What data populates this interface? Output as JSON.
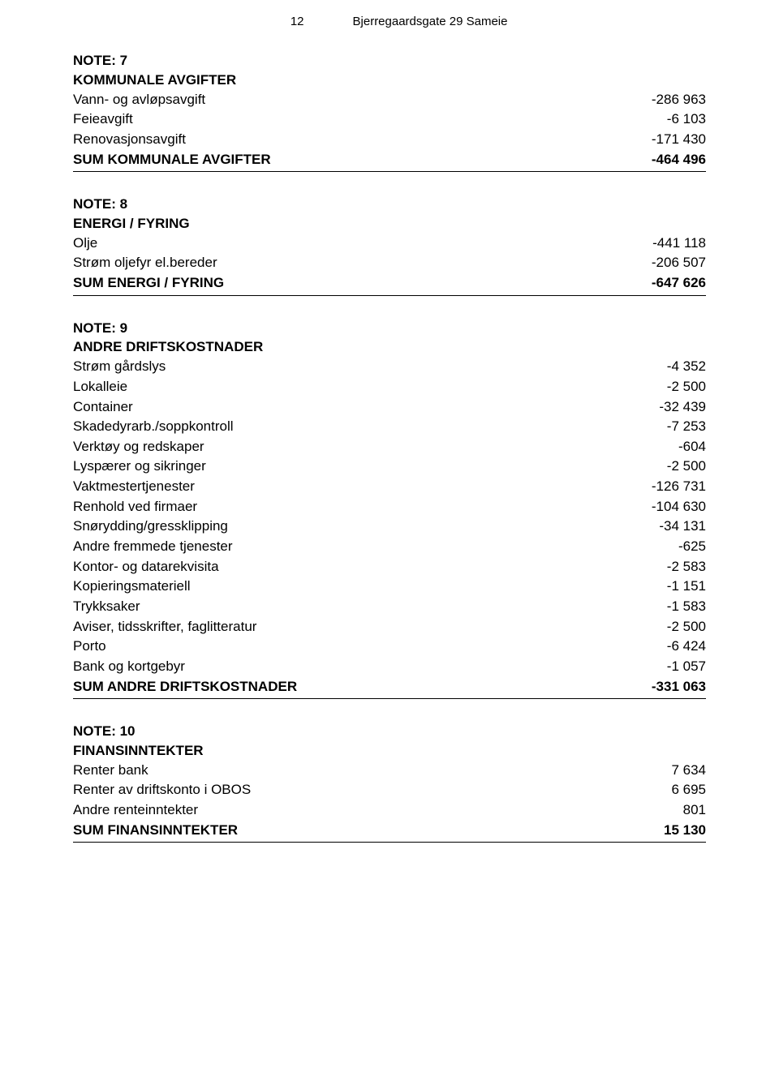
{
  "header": {
    "page_number": "12",
    "doc_title": "Bjerregaardsgate 29 Sameie"
  },
  "sections": [
    {
      "note": "NOTE: 7",
      "title": "KOMMUNALE AVGIFTER",
      "rows": [
        {
          "label": "Vann- og avløpsavgift",
          "value": "-286 963"
        },
        {
          "label": "Feieavgift",
          "value": "-6 103"
        },
        {
          "label": "Renovasjonsavgift",
          "value": "-171 430"
        }
      ],
      "sumrow": {
        "label": "SUM KOMMUNALE AVGIFTER",
        "value": "-464 496"
      }
    },
    {
      "note": "NOTE: 8",
      "title": "ENERGI / FYRING",
      "rows": [
        {
          "label": "Olje",
          "value": "-441 118"
        },
        {
          "label": "Strøm oljefyr el.bereder",
          "value": "-206 507"
        }
      ],
      "sumrow": {
        "label": "SUM ENERGI / FYRING",
        "value": "-647 626"
      }
    },
    {
      "note": "NOTE: 9",
      "title": "ANDRE DRIFTSKOSTNADER",
      "rows": [
        {
          "label": "Strøm gårdslys",
          "value": "-4 352"
        },
        {
          "label": "Lokalleie",
          "value": "-2 500"
        },
        {
          "label": "Container",
          "value": "-32 439"
        },
        {
          "label": "Skadedyrarb./soppkontroll",
          "value": "-7 253"
        },
        {
          "label": "Verktøy og redskaper",
          "value": "-604"
        },
        {
          "label": "Lyspærer og sikringer",
          "value": "-2 500"
        },
        {
          "label": "Vaktmestertjenester",
          "value": "-126 731"
        },
        {
          "label": "Renhold ved firmaer",
          "value": "-104 630"
        },
        {
          "label": "Snørydding/gressklipping",
          "value": "-34 131"
        },
        {
          "label": "Andre fremmede tjenester",
          "value": "-625"
        },
        {
          "label": "Kontor- og datarekvisita",
          "value": "-2 583"
        },
        {
          "label": "Kopieringsmateriell",
          "value": "-1 151"
        },
        {
          "label": "Trykksaker",
          "value": "-1 583"
        },
        {
          "label": "Aviser, tidsskrifter, faglitteratur",
          "value": "-2 500"
        },
        {
          "label": "Porto",
          "value": "-6 424"
        },
        {
          "label": "Bank og kortgebyr",
          "value": "-1 057"
        }
      ],
      "sumrow": {
        "label": "SUM ANDRE DRIFTSKOSTNADER",
        "value": "-331 063"
      }
    },
    {
      "note": "NOTE: 10",
      "title": "FINANSINNTEKTER",
      "rows": [
        {
          "label": "Renter bank",
          "value": "7 634"
        },
        {
          "label": "Renter av driftskonto i OBOS",
          "value": "6 695"
        },
        {
          "label": "Andre renteinntekter",
          "value": "801"
        }
      ],
      "sumrow": {
        "label": "SUM FINANSINNTEKTER",
        "value": "15 130"
      }
    }
  ]
}
